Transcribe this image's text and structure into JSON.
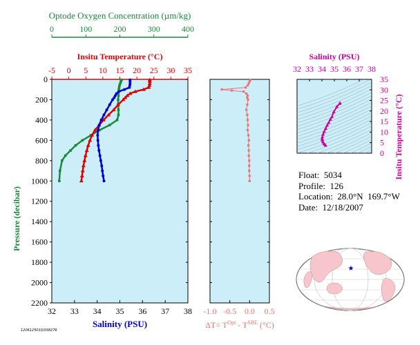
{
  "colors": {
    "panel_bg": "#cceef8",
    "oxygen": "#1a8a3a",
    "temperature": "#dd0000",
    "salinity": "#0000cc",
    "delta_t": "#f07070",
    "ts": "#cc0099",
    "pressure": "#118833"
  },
  "info": {
    "float": "Float:  5034",
    "profile": "Profile:  126",
    "location": "Location:  28.0°N  169.7°W",
    "date": "Date:  12/18/2007"
  },
  "footer_id": "1206125033/038276",
  "chart_data": [
    {
      "type": "scatter",
      "name": "main-profile",
      "ylabel": "Pressure (decibar)",
      "ylim": [
        2200,
        0
      ],
      "yticks": [
        "0",
        "200",
        "400",
        "600",
        "800",
        "1000",
        "1200",
        "1400",
        "1600",
        "1800",
        "2000",
        "2200"
      ],
      "axes": {
        "oxygen": {
          "label": "Optode Oxygen Concentration (µm/kg)",
          "range": [
            0,
            400
          ],
          "ticks": [
            "0",
            "100",
            "200",
            "300",
            "400"
          ]
        },
        "temperature": {
          "label": "Insitu Temperature (°C)",
          "range": [
            -5,
            35
          ],
          "ticks": [
            "-5",
            "0",
            "5",
            "10",
            "15",
            "20",
            "25",
            "30",
            "35"
          ]
        },
        "salinity": {
          "label": "Salinity (PSU)",
          "range": [
            32,
            38
          ],
          "ticks": [
            "32",
            "33",
            "34",
            "35",
            "36",
            "37",
            "38"
          ]
        }
      },
      "oxygen": {
        "pressure": [
          5,
          20,
          40,
          60,
          80,
          100,
          130,
          160,
          200,
          250,
          300,
          350,
          400,
          450,
          500,
          550,
          600,
          650,
          700,
          750,
          800,
          900,
          1000
        ],
        "values": [
          205,
          203,
          201,
          199,
          198,
          197,
          196,
          196,
          195,
          195,
          196,
          196,
          192,
          170,
          140,
          115,
          90,
          70,
          55,
          40,
          30,
          24,
          22
        ]
      },
      "temperature": {
        "pressure": [
          5,
          20,
          40,
          60,
          80,
          100,
          120,
          140,
          160,
          180,
          200,
          250,
          300,
          350,
          400,
          450,
          500,
          550,
          600,
          650,
          700,
          750,
          800,
          850,
          900,
          950,
          1000
        ],
        "values": [
          23.8,
          23.8,
          23.8,
          23.7,
          23.5,
          22.0,
          19.5,
          18.0,
          17.2,
          16.6,
          16.0,
          14.5,
          13.2,
          11.7,
          10.2,
          8.9,
          7.7,
          6.8,
          6.2,
          5.7,
          5.3,
          4.9,
          4.6,
          4.3,
          4.1,
          3.9,
          3.7
        ]
      },
      "salinity": {
        "pressure": [
          5,
          20,
          40,
          60,
          80,
          100,
          120,
          140,
          160,
          180,
          200,
          250,
          300,
          350,
          400,
          450,
          500,
          550,
          600,
          650,
          700,
          750,
          800,
          850,
          900,
          950,
          1000
        ],
        "values": [
          35.45,
          35.45,
          35.45,
          35.44,
          35.42,
          35.2,
          34.95,
          34.85,
          34.8,
          34.75,
          34.68,
          34.55,
          34.42,
          34.3,
          34.18,
          34.09,
          34.04,
          34.02,
          34.03,
          34.05,
          34.08,
          34.12,
          34.16,
          34.2,
          34.23,
          34.26,
          34.3
        ]
      }
    },
    {
      "type": "scatter",
      "name": "delta-t",
      "xlabel": "ΔT= T",
      "xlabel_sup1": "Opt",
      "xlabel_mid": " - T",
      "xlabel_sup2": "SBE",
      "xlabel_tail": " (°C)",
      "xlim": [
        -1.0,
        0.5
      ],
      "xticks": [
        "-1.0",
        "-0.5",
        "0.0",
        "0.5"
      ],
      "ylim": [
        2200,
        0
      ],
      "pressure": [
        5,
        20,
        40,
        60,
        80,
        100,
        110,
        120,
        140,
        160,
        180,
        200,
        250,
        300,
        350,
        400,
        450,
        500,
        550,
        600,
        650,
        700,
        750,
        800,
        850,
        900,
        950,
        1000
      ],
      "values": [
        0.02,
        0.0,
        -0.02,
        -0.05,
        -0.1,
        -0.7,
        -0.45,
        -0.15,
        -0.08,
        -0.05,
        -0.06,
        -0.04,
        -0.06,
        -0.08,
        -0.06,
        -0.05,
        -0.04,
        -0.05,
        -0.03,
        -0.02,
        -0.03,
        -0.02,
        -0.02,
        -0.01,
        -0.01,
        -0.01,
        0.0,
        0.0
      ]
    },
    {
      "type": "scatter",
      "name": "ts-diagram",
      "xlabel": "Salinity (PSU)",
      "ylabel": "Insitu Temperature (°C)",
      "xlim": [
        32,
        38
      ],
      "ylim": [
        0,
        35
      ],
      "xticks": [
        "32",
        "33",
        "34",
        "35",
        "36",
        "37",
        "38"
      ],
      "yticks": [
        "0",
        "5",
        "10",
        "15",
        "20",
        "25",
        "30",
        "35"
      ],
      "salinity": [
        34.3,
        34.23,
        34.16,
        34.08,
        34.03,
        34.02,
        34.04,
        34.09,
        34.18,
        34.3,
        34.42,
        34.55,
        34.68,
        34.8,
        34.95,
        35.2,
        35.42,
        35.45
      ],
      "temperature": [
        3.7,
        4.1,
        4.6,
        5.3,
        6.2,
        6.8,
        7.7,
        8.9,
        10.2,
        11.7,
        13.2,
        14.5,
        16.0,
        17.2,
        19.5,
        22.0,
        23.5,
        23.8
      ]
    }
  ]
}
